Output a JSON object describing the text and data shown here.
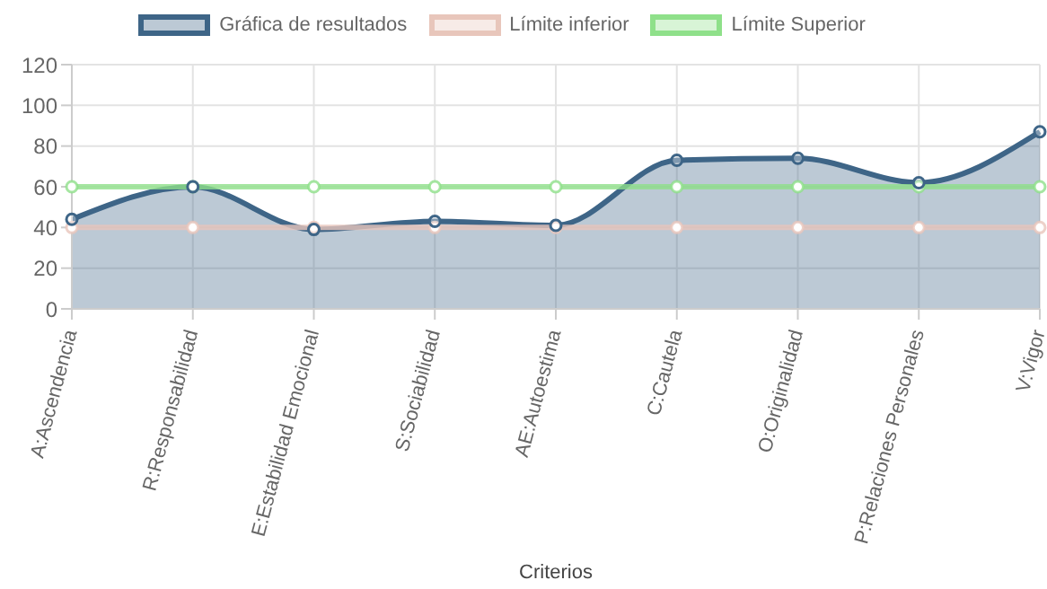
{
  "chart_data": {
    "type": "line",
    "xlabel": "Criterios",
    "categories": [
      "A:Ascendencia",
      "R:Responsabilidad",
      "E:Estabilidad Emocional",
      "S:Sociabilidad",
      "AE:Autoestima",
      "C:Cautela",
      "O:Originalidad",
      "P:Relaciones Personales",
      "V:Vigor"
    ],
    "series": [
      {
        "name": "Gráfica de resultados",
        "type": "area",
        "color": "#3e6587",
        "values": [
          44,
          60,
          39,
          43,
          41,
          73,
          74,
          62,
          87
        ]
      },
      {
        "name": "Límite inferior",
        "color": "#e8c6bb",
        "values": [
          40,
          40,
          40,
          40,
          40,
          40,
          40,
          40,
          40
        ]
      },
      {
        "name": "Límite Superior",
        "color": "#8fe08a",
        "values": [
          60,
          60,
          60,
          60,
          60,
          60,
          60,
          60,
          60
        ]
      }
    ],
    "ylim": [
      0,
      120
    ],
    "yticks": [
      0,
      20,
      40,
      60,
      80,
      100,
      120
    ],
    "grid": true,
    "legend": "top",
    "marker": "circle"
  }
}
